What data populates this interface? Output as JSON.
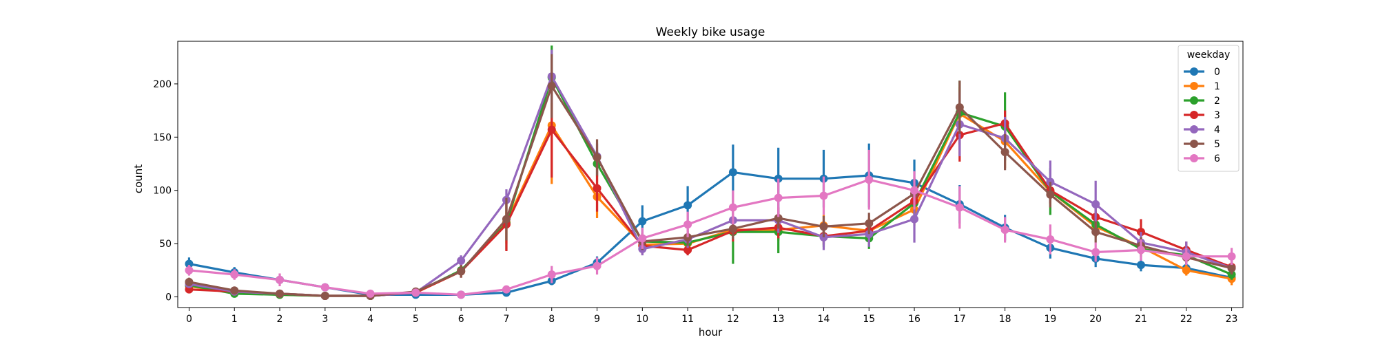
{
  "chart_data": {
    "type": "line",
    "title": "Weekly bike usage",
    "xlabel": "hour",
    "ylabel": "count",
    "x": [
      0,
      1,
      2,
      3,
      4,
      5,
      6,
      7,
      8,
      9,
      10,
      11,
      12,
      13,
      14,
      15,
      16,
      17,
      18,
      19,
      20,
      21,
      22,
      23
    ],
    "xlim": [
      -0.25,
      23.25
    ],
    "ylim": [
      -10,
      240
    ],
    "yticks": [
      0,
      50,
      100,
      150,
      200
    ],
    "grid": false,
    "legend": {
      "title": "weekday",
      "placement": "top-right"
    },
    "series": [
      {
        "name": "0",
        "color": "#1f77b4",
        "values": [
          31,
          23,
          16,
          9,
          2,
          2,
          2,
          4,
          15,
          32,
          71,
          86,
          117,
          111,
          111,
          114,
          107,
          87,
          65,
          46,
          36,
          30,
          27,
          18
        ],
        "errors": [
          6,
          5,
          4,
          3,
          1,
          1,
          1,
          2,
          4,
          6,
          15,
          18,
          26,
          29,
          27,
          30,
          22,
          18,
          12,
          10,
          8,
          6,
          5,
          4
        ]
      },
      {
        "name": "1",
        "color": "#ff7f0e",
        "values": [
          10,
          4,
          2,
          1,
          1,
          4,
          24,
          70,
          161,
          94,
          49,
          50,
          63,
          63,
          67,
          62,
          82,
          172,
          146,
          99,
          66,
          47,
          25,
          17
        ],
        "errors": [
          3,
          2,
          1,
          1,
          1,
          2,
          5,
          20,
          55,
          20,
          8,
          8,
          10,
          10,
          10,
          12,
          15,
          25,
          25,
          12,
          10,
          8,
          5,
          6
        ]
      },
      {
        "name": "2",
        "color": "#2ca02c",
        "values": [
          11,
          3,
          2,
          1,
          1,
          4,
          25,
          69,
          206,
          125,
          52,
          51,
          61,
          61,
          57,
          55,
          88,
          173,
          160,
          99,
          68,
          45,
          39,
          21
        ],
        "errors": [
          3,
          2,
          1,
          1,
          1,
          2,
          5,
          25,
          30,
          12,
          8,
          8,
          30,
          20,
          10,
          10,
          15,
          30,
          32,
          22,
          12,
          8,
          6,
          5
        ]
      },
      {
        "name": "3",
        "color": "#d62728",
        "values": [
          7,
          5,
          3,
          1,
          1,
          4,
          24,
          68,
          157,
          102,
          48,
          44,
          62,
          65,
          57,
          62,
          90,
          152,
          163,
          100,
          75,
          61,
          44,
          28
        ],
        "errors": [
          3,
          2,
          1,
          1,
          1,
          2,
          6,
          25,
          45,
          22,
          8,
          5,
          10,
          10,
          8,
          10,
          15,
          25,
          12,
          12,
          10,
          12,
          8,
          6
        ]
      },
      {
        "name": "4",
        "color": "#9467bd",
        "values": [
          12,
          5,
          3,
          1,
          1,
          4,
          34,
          91,
          207,
          132,
          45,
          54,
          72,
          72,
          56,
          59,
          73,
          162,
          149,
          108,
          87,
          51,
          42,
          27
        ],
        "errors": [
          3,
          2,
          1,
          1,
          1,
          2,
          5,
          10,
          25,
          12,
          6,
          8,
          10,
          12,
          12,
          12,
          22,
          30,
          20,
          20,
          22,
          10,
          10,
          6
        ]
      },
      {
        "name": "5",
        "color": "#8c564b",
        "values": [
          14,
          6,
          3,
          1,
          1,
          5,
          24,
          73,
          198,
          131,
          52,
          56,
          64,
          74,
          66,
          69,
          97,
          178,
          136,
          96,
          61,
          48,
          37,
          27
        ],
        "errors": [
          4,
          2,
          1,
          1,
          1,
          2,
          6,
          20,
          30,
          17,
          8,
          8,
          10,
          10,
          10,
          10,
          15,
          25,
          17,
          12,
          10,
          8,
          6,
          6
        ]
      },
      {
        "name": "6",
        "color": "#e377c2",
        "values": [
          25,
          21,
          16,
          9,
          3,
          4,
          2,
          7,
          21,
          29,
          55,
          68,
          84,
          93,
          95,
          110,
          100,
          84,
          63,
          54,
          42,
          44,
          38,
          38
        ],
        "errors": [
          5,
          5,
          6,
          3,
          1,
          1,
          1,
          3,
          8,
          8,
          10,
          12,
          16,
          18,
          18,
          28,
          18,
          20,
          12,
          14,
          9,
          10,
          8,
          8
        ]
      }
    ]
  }
}
